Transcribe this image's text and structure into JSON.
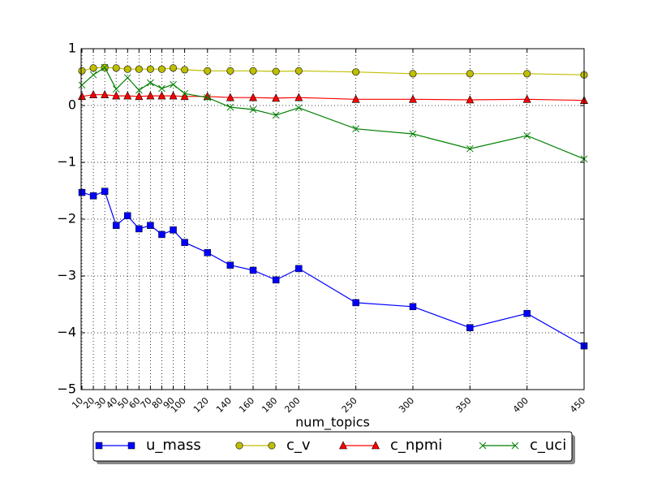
{
  "chart_data": {
    "type": "line",
    "x_label": "num_topics",
    "x": [
      10,
      20,
      30,
      40,
      50,
      60,
      70,
      80,
      90,
      100,
      120,
      140,
      160,
      180,
      200,
      250,
      300,
      350,
      400,
      450
    ],
    "xlim": [
      10,
      450
    ],
    "xticks": [
      10,
      20,
      30,
      40,
      50,
      60,
      70,
      80,
      90,
      100,
      120,
      140,
      160,
      180,
      200,
      250,
      300,
      350,
      400,
      450
    ],
    "ylim": [
      -5,
      1
    ],
    "yticks": [
      {
        "value": -5,
        "label": "−5"
      },
      {
        "value": -4,
        "label": "−4"
      },
      {
        "value": -3,
        "label": "−3"
      },
      {
        "value": -2,
        "label": "−2"
      },
      {
        "value": -1,
        "label": "−1"
      },
      0,
      1
    ],
    "grid": true,
    "legend": "below",
    "series": [
      {
        "name": "u_mass",
        "color": "#0000ff",
        "marker": "square",
        "values": [
          -1.53,
          -1.59,
          -1.51,
          -2.11,
          -1.94,
          -2.17,
          -2.11,
          -2.27,
          -2.19,
          -2.41,
          -2.59,
          -2.81,
          -2.9,
          -3.07,
          -2.87,
          -3.47,
          -3.54,
          -3.91,
          -3.66,
          -4.23
        ]
      },
      {
        "name": "c_v",
        "color": "#bfbf00",
        "marker": "circle",
        "values": [
          0.61,
          0.66,
          0.67,
          0.66,
          0.64,
          0.64,
          0.64,
          0.64,
          0.66,
          0.63,
          0.61,
          0.61,
          0.61,
          0.6,
          0.61,
          0.59,
          0.56,
          0.56,
          0.56,
          0.54
        ]
      },
      {
        "name": "c_npmi",
        "color": "#ff0000",
        "marker": "triangle",
        "values": [
          0.16,
          0.19,
          0.19,
          0.17,
          0.17,
          0.16,
          0.17,
          0.17,
          0.17,
          0.16,
          0.16,
          0.14,
          0.14,
          0.13,
          0.14,
          0.11,
          0.11,
          0.1,
          0.11,
          0.09
        ]
      },
      {
        "name": "c_uci",
        "color": "#008000",
        "marker": "x",
        "values": [
          0.36,
          0.54,
          0.67,
          0.29,
          0.49,
          0.27,
          0.4,
          0.3,
          0.37,
          0.21,
          0.14,
          -0.03,
          -0.07,
          -0.17,
          -0.04,
          -0.41,
          -0.5,
          -0.76,
          -0.53,
          -0.94
        ]
      }
    ]
  }
}
